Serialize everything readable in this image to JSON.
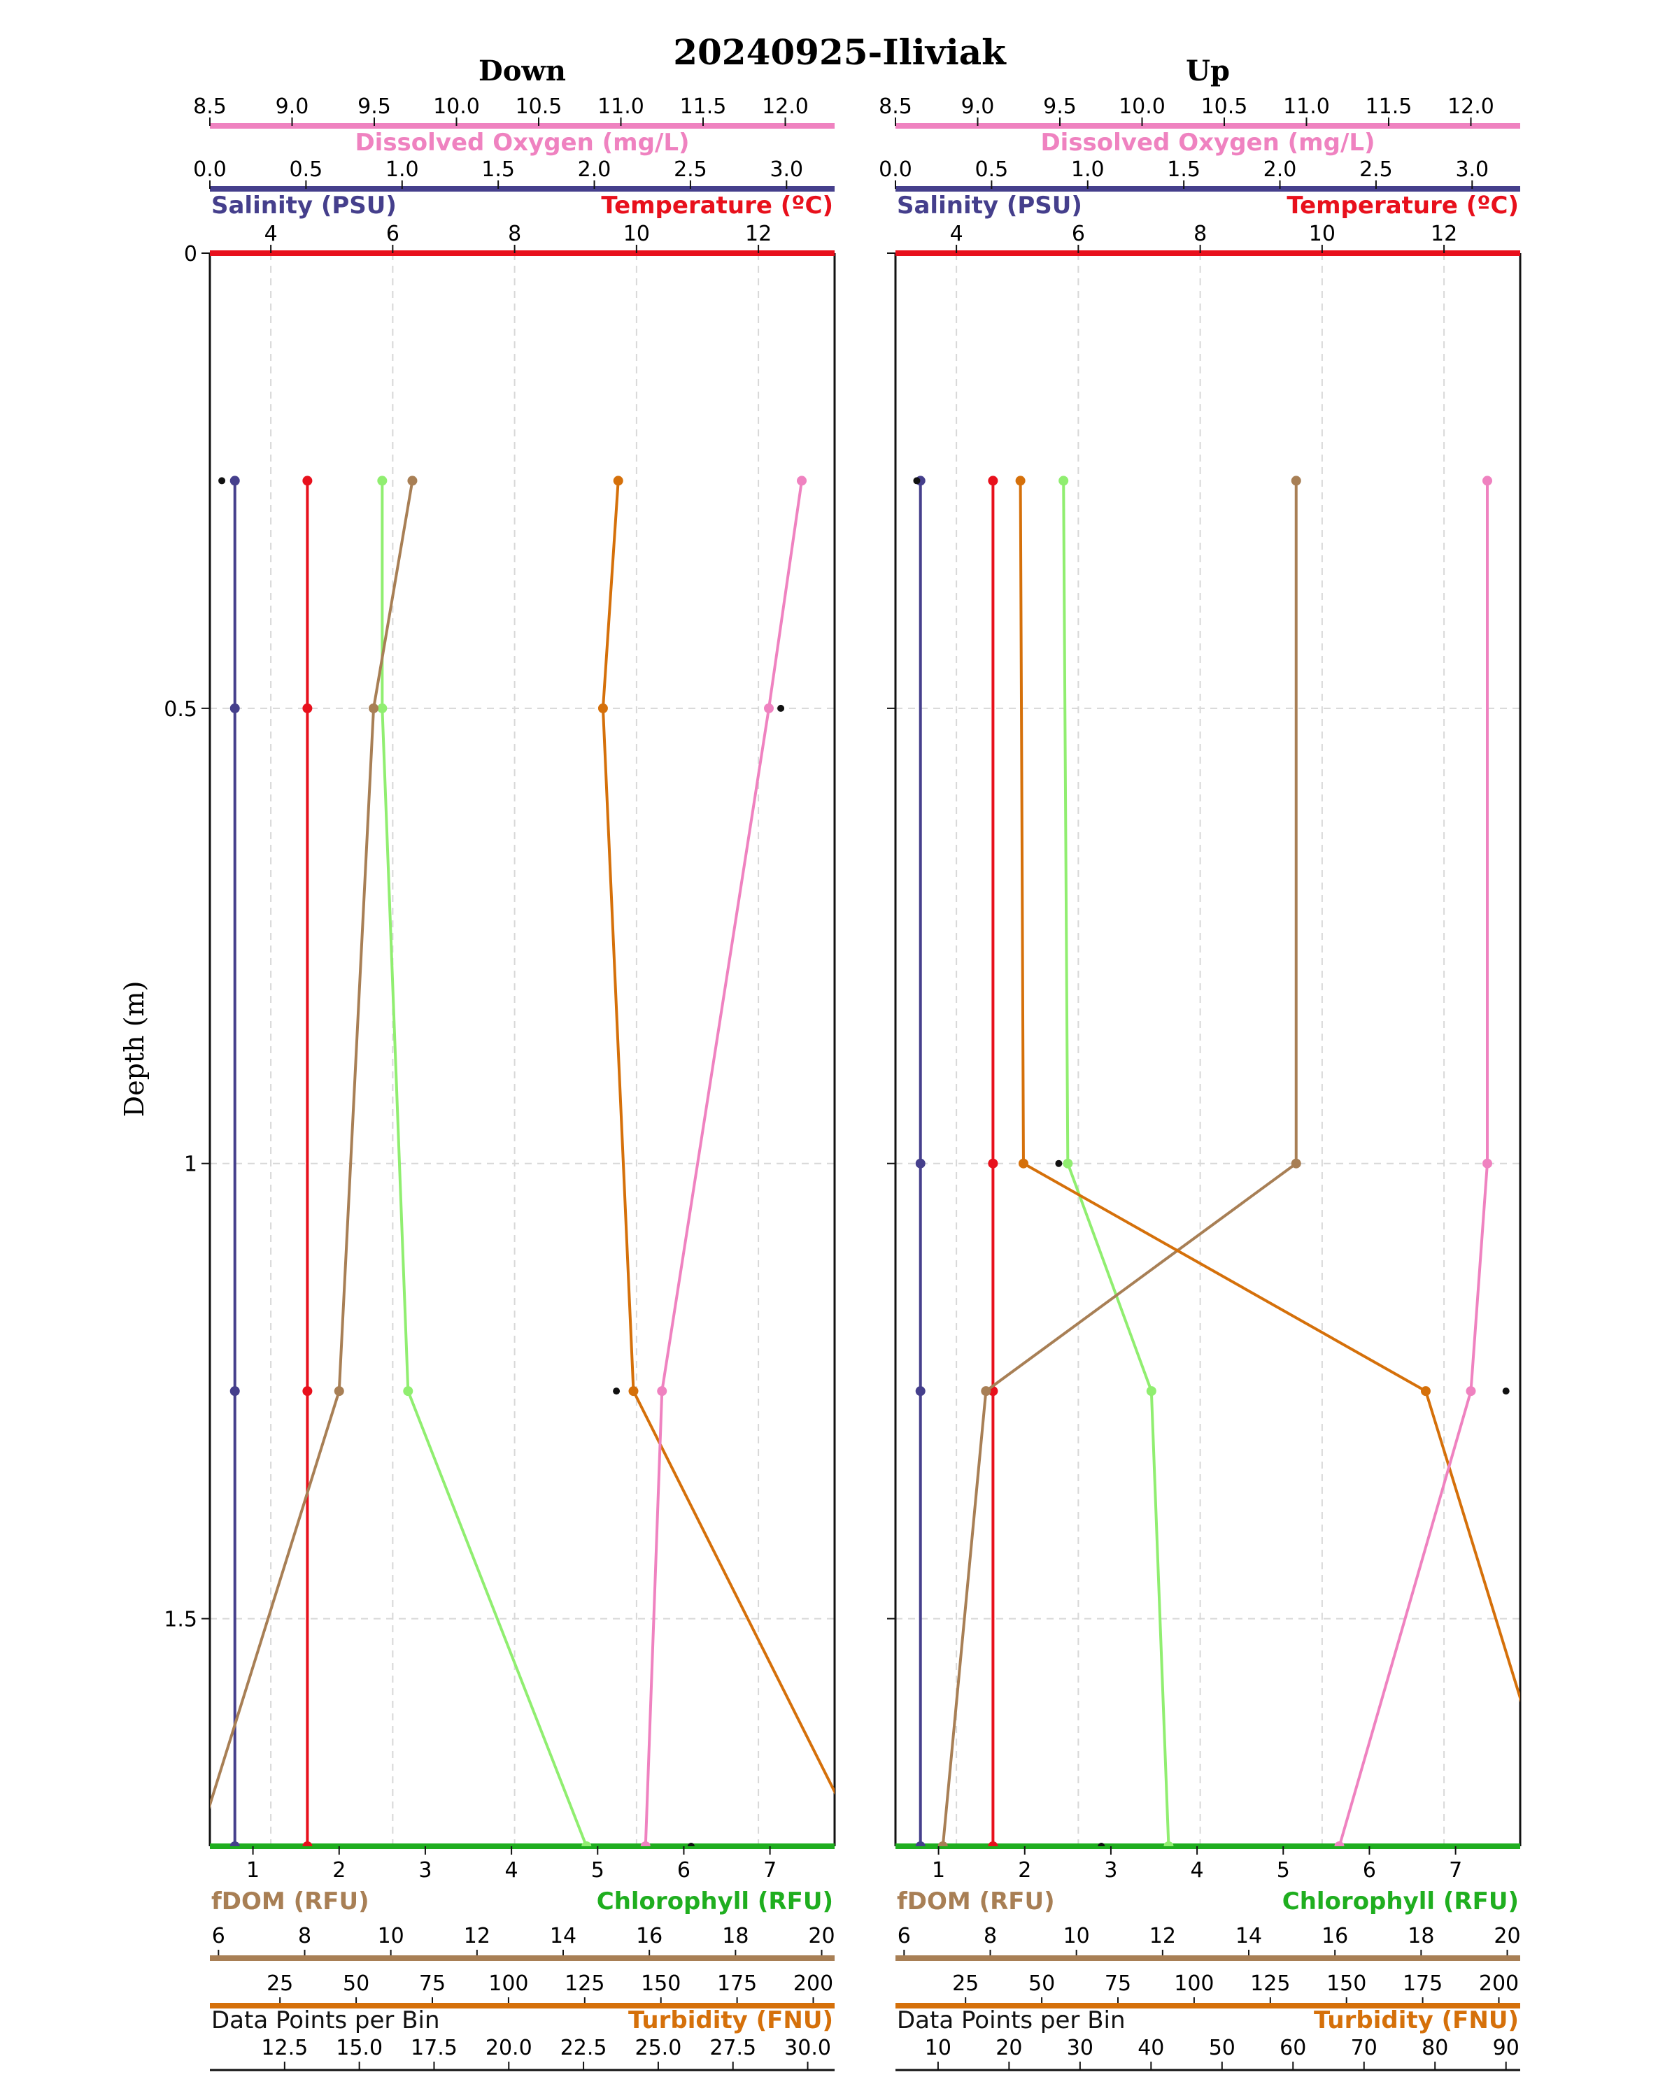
{
  "chart_data": {
    "title": "20240925-Iliviak",
    "ylabel": "Depth (m)",
    "y_axis": {
      "ylim": [
        1.75,
        0.0
      ],
      "ticks": [
        0.0,
        0.5,
        1.0,
        1.5
      ],
      "inverted": true
    },
    "grid": true,
    "axes_labels": {
      "dissolved_oxygen": "Dissolved Oxygen (mg/L)",
      "salinity": "Salinity (PSU)",
      "temperature": "Temperature (ºC)",
      "fdom": "fDOM (RFU)",
      "chlorophyll": "Chlorophyll (RFU)",
      "turbidity": "Turbidity (FNU)",
      "data_points": "Data Points per Bin"
    },
    "colors": {
      "dissolved_oxygen": "#ef82c0",
      "salinity": "#453f8c",
      "temperature": "#e8101c",
      "fdom": "#a87f55",
      "chlorophyll": "#1fae1f",
      "chlorophyll_line": "#90ee70",
      "turbidity": "#d5700a",
      "data_points": "#111111"
    },
    "panels": [
      {
        "name": "Down",
        "axes": {
          "dissolved_oxygen": {
            "range": [
              8.5,
              12.3
            ],
            "ticks": [
              "8.5",
              "9.0",
              "9.5",
              "10.0",
              "10.5",
              "11.0",
              "11.5",
              "12.0"
            ]
          },
          "salinity": {
            "range": [
              0.0,
              3.25
            ],
            "ticks": [
              "0.0",
              "0.5",
              "1.0",
              "1.5",
              "2.0",
              "2.5",
              "3.0"
            ]
          },
          "temperature": {
            "range": [
              3.0,
              13.25
            ],
            "ticks": [
              "4",
              "6",
              "8",
              "10",
              "12"
            ]
          },
          "chlorophyll": {
            "range": [
              0.5,
              7.75
            ],
            "ticks": [
              "1",
              "2",
              "3",
              "4",
              "5",
              "6",
              "7"
            ]
          },
          "fdom": {
            "range": [
              5.8,
              20.3
            ],
            "ticks": [
              "6",
              "8",
              "10",
              "12",
              "14",
              "16",
              "18",
              "20"
            ]
          },
          "turbidity": {
            "range": [
              2,
              207
            ],
            "ticks": [
              "25",
              "50",
              "75",
              "100",
              "125",
              "150",
              "175",
              "200"
            ]
          },
          "data_points": {
            "range": [
              10.0,
              30.9
            ],
            "ticks": [
              "12.5",
              "15.0",
              "17.5",
              "20.0",
              "22.5",
              "25.0",
              "27.5",
              "30.0"
            ]
          }
        },
        "series": [
          {
            "name": "Salinity (PSU)",
            "key": "salinity",
            "depth": [
              0.25,
              0.5,
              1.25,
              1.75
            ],
            "values": [
              0.13,
              0.13,
              0.13,
              0.13
            ]
          },
          {
            "name": "Temperature (ºC)",
            "key": "temperature",
            "depth": [
              0.25,
              0.5,
              1.25,
              1.75
            ],
            "values": [
              4.6,
              4.6,
              4.6,
              4.6
            ]
          },
          {
            "name": "Chlorophyll (RFU)",
            "key": "chlorophyll",
            "depth": [
              0.25,
              0.5,
              1.25,
              1.75
            ],
            "values": [
              2.5,
              2.5,
              2.8,
              4.87
            ]
          },
          {
            "name": "fDOM (RFU)",
            "key": "fdom",
            "depth": [
              0.25,
              0.5,
              1.25,
              1.75
            ],
            "values": [
              10.5,
              9.6,
              8.8,
              5.5
            ]
          },
          {
            "name": "Turbidity (FNU)",
            "key": "turbidity",
            "depth": [
              0.25,
              0.5,
              1.25,
              1.75
            ],
            "values": [
              136,
              131,
              141,
              216
            ]
          },
          {
            "name": "Dissolved Oxygen (mg/L)",
            "key": "dissolved_oxygen",
            "depth": [
              0.25,
              0.5,
              1.25,
              1.75
            ],
            "values": [
              12.1,
              11.9,
              11.25,
              11.15
            ]
          },
          {
            "name": "Data Points per Bin",
            "key": "data_points",
            "markers_only": true,
            "depth": [
              0.25,
              0.5,
              1.25,
              1.75
            ],
            "values": [
              10.4,
              29.1,
              23.6,
              26.1
            ]
          }
        ]
      },
      {
        "name": "Up",
        "axes": {
          "dissolved_oxygen": {
            "range": [
              8.5,
              12.3
            ],
            "ticks": [
              "8.5",
              "9.0",
              "9.5",
              "10.0",
              "10.5",
              "11.0",
              "11.5",
              "12.0"
            ]
          },
          "salinity": {
            "range": [
              0.0,
              3.25
            ],
            "ticks": [
              "0.0",
              "0.5",
              "1.0",
              "1.5",
              "2.0",
              "2.5",
              "3.0"
            ]
          },
          "temperature": {
            "range": [
              3.0,
              13.25
            ],
            "ticks": [
              "4",
              "6",
              "8",
              "10",
              "12"
            ]
          },
          "chlorophyll": {
            "range": [
              0.5,
              7.75
            ],
            "ticks": [
              "1",
              "2",
              "3",
              "4",
              "5",
              "6",
              "7"
            ]
          },
          "fdom": {
            "range": [
              5.8,
              20.3
            ],
            "ticks": [
              "6",
              "8",
              "10",
              "12",
              "14",
              "16",
              "18",
              "20"
            ]
          },
          "turbidity": {
            "range": [
              2,
              207
            ],
            "ticks": [
              "25",
              "50",
              "75",
              "100",
              "125",
              "150",
              "175",
              "200"
            ]
          },
          "data_points": {
            "range": [
              4.0,
              92.0
            ],
            "ticks": [
              "10",
              "20",
              "30",
              "40",
              "50",
              "60",
              "70",
              "80",
              "90"
            ]
          }
        },
        "series": [
          {
            "name": "Salinity (PSU)",
            "key": "salinity",
            "depth": [
              0.25,
              1.0,
              1.25,
              1.75
            ],
            "values": [
              0.13,
              0.13,
              0.13,
              0.13
            ]
          },
          {
            "name": "Temperature (ºC)",
            "key": "temperature",
            "depth": [
              0.25,
              1.0,
              1.25,
              1.75
            ],
            "values": [
              4.6,
              4.6,
              4.6,
              4.6
            ]
          },
          {
            "name": "Chlorophyll (RFU)",
            "key": "chlorophyll",
            "depth": [
              0.25,
              1.0,
              1.25,
              1.75
            ],
            "values": [
              2.45,
              2.5,
              3.47,
              3.67
            ]
          },
          {
            "name": "fDOM (RFU)",
            "key": "fdom",
            "depth": [
              0.25,
              1.0,
              1.25,
              1.75
            ],
            "values": [
              15.1,
              15.1,
              7.9,
              6.9
            ]
          },
          {
            "name": "Turbidity (FNU)",
            "key": "turbidity",
            "depth": [
              0.25,
              1.0,
              1.25,
              1.75
            ],
            "values": [
              43,
              44,
              176,
              222
            ]
          },
          {
            "name": "Dissolved Oxygen (mg/L)",
            "key": "dissolved_oxygen",
            "depth": [
              0.25,
              1.0,
              1.25,
              1.75
            ],
            "values": [
              12.1,
              12.1,
              12.0,
              11.2
            ]
          },
          {
            "name": "Data Points per Bin",
            "key": "data_points",
            "markers_only": true,
            "depth": [
              0.25,
              1.0,
              1.25,
              1.75
            ],
            "values": [
              7.0,
              27.0,
              90.0,
              33.0
            ]
          }
        ]
      }
    ]
  }
}
